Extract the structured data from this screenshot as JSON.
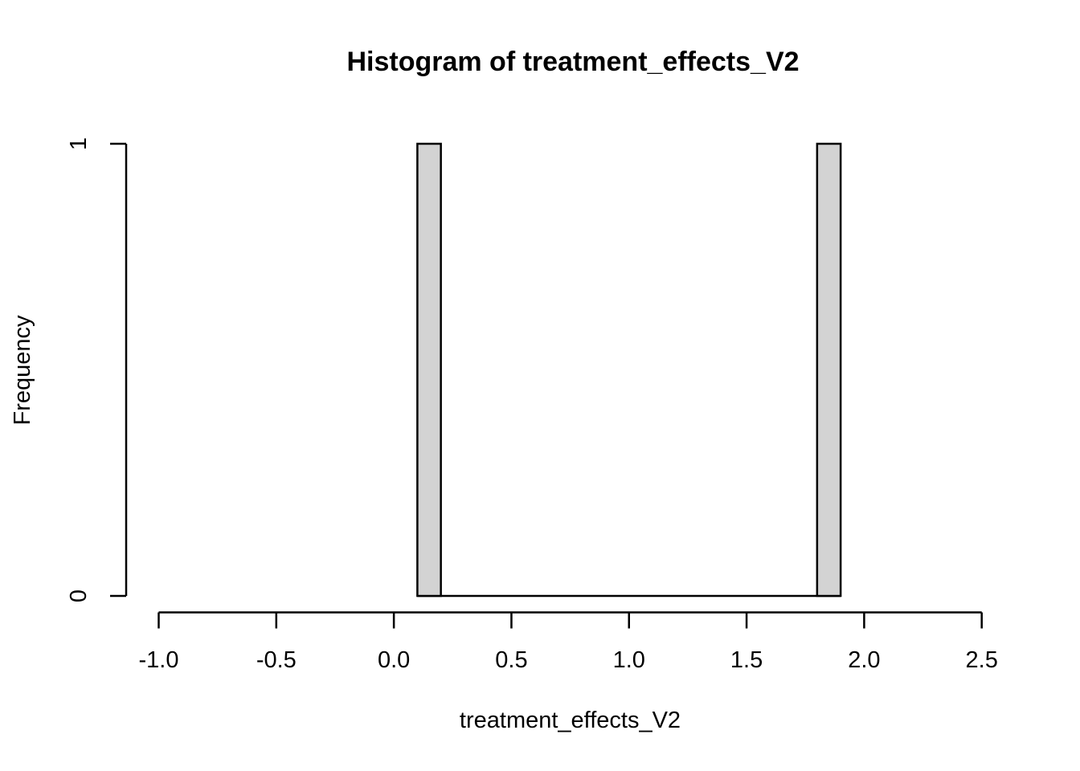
{
  "chart_data": {
    "type": "bar",
    "subtype": "histogram",
    "title": "Histogram of treatment_effects_V2",
    "xlabel": "treatment_effects_V2",
    "ylabel": "Frequency",
    "bins": [
      {
        "from": 0.1,
        "to": 0.2,
        "count": 1
      },
      {
        "from": 1.8,
        "to": 1.9,
        "count": 1
      }
    ],
    "breaks_range": [
      0.1,
      1.9
    ],
    "bin_width": 0.1,
    "x_ticks": [
      -1.0,
      -0.5,
      0.0,
      0.5,
      1.0,
      1.5,
      2.0,
      2.5
    ],
    "x_tick_labels": [
      "-1.0",
      "-0.5",
      "0.0",
      "0.5",
      "1.0",
      "1.5",
      "2.0",
      "2.5"
    ],
    "y_ticks": [
      0,
      1
    ],
    "y_tick_labels": [
      "0",
      "1"
    ],
    "xlim": [
      -1.0,
      2.5
    ],
    "ylim": [
      0,
      1
    ],
    "grid": false,
    "legend": false,
    "colors": {
      "bar_fill": "#d3d3d3",
      "bar_stroke": "#000000",
      "axis": "#000000",
      "background": "#ffffff",
      "text": "#000000"
    }
  }
}
